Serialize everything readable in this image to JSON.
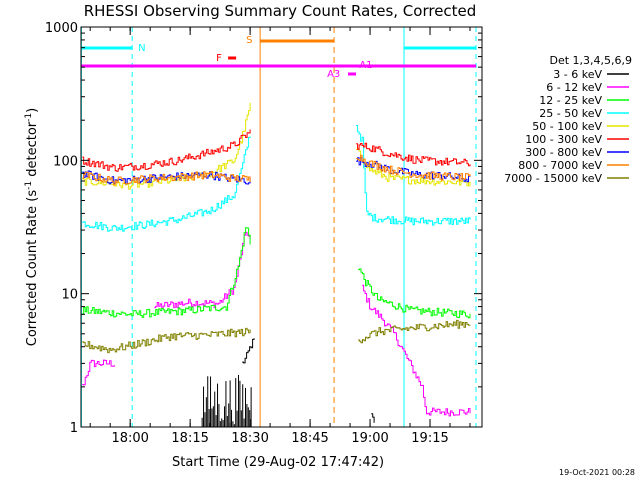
{
  "chart_data": {
    "type": "line",
    "title": "RHESSI Observing Summary Count Rates, Corrected",
    "xlabel": "Start Time (29-Aug-02 17:47:42)",
    "ylabel": "Corrected Count Rate (s⁻¹ detector⁻¹)",
    "ylabel_parts": {
      "main": "Corrected Count Rate (s",
      "sup1": "-1",
      "mid": " detector",
      "sup2": "-1",
      "end": ")"
    },
    "xlim_minutes_after_17_00": [
      47.7,
      148.0
    ],
    "ylim": [
      1,
      1000
    ],
    "yscale": "log",
    "x_ticks": [
      {
        "label": "18:00",
        "t": 60
      },
      {
        "label": "18:15",
        "t": 75
      },
      {
        "label": "18:30",
        "t": 90
      },
      {
        "label": "18:45",
        "t": 105
      },
      {
        "label": "19:00",
        "t": 120
      },
      {
        "label": "19:15",
        "t": 135
      }
    ],
    "y_ticks": [
      {
        "label": "1",
        "v": 1
      },
      {
        "label": "10",
        "v": 10
      },
      {
        "label": "100",
        "v": 100
      },
      {
        "label": "1000",
        "v": 1000
      }
    ],
    "legend_title": "Det 1,3,4,5,6,9",
    "legend_placement": "right",
    "series": [
      {
        "name": "3 - 6 keV",
        "color": "#000000",
        "segments": [
          [
            [
              88,
              3
            ],
            [
              89,
              3.3
            ],
            [
              90,
              4
            ],
            [
              91,
              4.5
            ]
          ],
          [
            [
              120.3,
              1.2
            ],
            [
              121,
              1.1
            ]
          ]
        ]
      },
      {
        "name": "6 - 12 keV",
        "color": "#ff00ff",
        "segments": [
          [
            [
              48,
              2
            ],
            [
              50,
              3
            ],
            [
              56,
              3
            ]
          ],
          [
            [
              66,
              8
            ],
            [
              75,
              8.6
            ],
            [
              82,
              8.4
            ],
            [
              86,
              11
            ],
            [
              88,
              22
            ],
            [
              89,
              30
            ],
            [
              90,
              25
            ]
          ],
          [
            [
              118,
              11
            ],
            [
              120,
              8
            ],
            [
              123,
              6.5
            ],
            [
              126,
              5
            ],
            [
              133,
              2
            ],
            [
              134,
              1.3
            ],
            [
              145,
              1.3
            ]
          ]
        ]
      },
      {
        "name": "12 - 25 keV",
        "color": "#00ff00",
        "segments": [
          [
            [
              48,
              7.5
            ],
            [
              60,
              7
            ],
            [
              75,
              7.5
            ],
            [
              84,
              8
            ],
            [
              87,
              16
            ],
            [
              89,
              33
            ],
            [
              90,
              24
            ]
          ],
          [
            [
              117,
              16
            ],
            [
              119,
              12
            ],
            [
              122,
              9
            ],
            [
              130,
              7.5
            ],
            [
              145,
              7
            ]
          ]
        ]
      },
      {
        "name": "25 - 50 keV",
        "color": "#00ffff",
        "segments": [
          [
            [
              48,
              34
            ],
            [
              56,
              31
            ],
            [
              64,
              33
            ],
            [
              72,
              36
            ],
            [
              80,
              42
            ],
            [
              86,
              55
            ],
            [
              88,
              90
            ],
            [
              90,
              160
            ]
          ],
          [
            [
              116.5,
              180
            ],
            [
              118,
              140
            ],
            [
              119,
              40
            ],
            [
              121,
              37
            ],
            [
              130,
              35
            ],
            [
              145,
              35
            ]
          ]
        ]
      },
      {
        "name": "50 - 100 keV",
        "color": "#e6e600",
        "segments": [
          [
            [
              48,
              70
            ],
            [
              60,
              65
            ],
            [
              72,
              72
            ],
            [
              80,
              80
            ],
            [
              86,
              100
            ],
            [
              88,
              150
            ],
            [
              90,
              260
            ]
          ],
          [
            [
              116.5,
              120
            ],
            [
              120,
              85
            ],
            [
              125,
              73
            ],
            [
              135,
              70
            ],
            [
              145,
              68
            ]
          ]
        ]
      },
      {
        "name": "100 - 300 keV",
        "color": "#ff0000",
        "segments": [
          [
            [
              48,
              100
            ],
            [
              56,
              88
            ],
            [
              64,
              92
            ],
            [
              72,
              100
            ],
            [
              80,
              115
            ],
            [
              86,
              130
            ],
            [
              90,
              165
            ]
          ],
          [
            [
              116.5,
              130
            ],
            [
              120,
              125
            ],
            [
              125,
              112
            ],
            [
              132,
              100
            ],
            [
              138,
              98
            ],
            [
              145,
              95
            ]
          ]
        ]
      },
      {
        "name": "300 - 800 keV",
        "color": "#0000ff",
        "segments": [
          [
            [
              48,
              80
            ],
            [
              56,
              70
            ],
            [
              64,
              73
            ],
            [
              72,
              76
            ],
            [
              80,
              78
            ],
            [
              85,
              73
            ],
            [
              90,
              70
            ]
          ],
          [
            [
              116.5,
              100
            ],
            [
              120,
              95
            ],
            [
              125,
              85
            ],
            [
              132,
              78
            ],
            [
              138,
              77
            ],
            [
              145,
              72
            ]
          ]
        ]
      },
      {
        "name": "800 - 7000 keV",
        "color": "#ff8000",
        "segments": [
          [
            [
              48,
              78
            ],
            [
              56,
              70
            ],
            [
              64,
              73
            ],
            [
              72,
              75
            ],
            [
              80,
              78
            ],
            [
              85,
              74
            ],
            [
              90,
              72
            ]
          ],
          [
            [
              116.5,
              110
            ],
            [
              120,
              95
            ],
            [
              125,
              85
            ],
            [
              132,
              78
            ],
            [
              138,
              76
            ],
            [
              145,
              74
            ]
          ]
        ]
      },
      {
        "name": "7000 - 15000 keV",
        "color": "#808000",
        "segments": [
          [
            [
              48,
              4.2
            ],
            [
              55,
              3.8
            ],
            [
              62,
              4.2
            ],
            [
              70,
              4.8
            ],
            [
              80,
              4.9
            ],
            [
              90,
              5.2
            ]
          ],
          [
            [
              117,
              4.5
            ],
            [
              122,
              5.2
            ],
            [
              130,
              5.5
            ],
            [
              138,
              5.8
            ],
            [
              145,
              6
            ]
          ]
        ]
      }
    ],
    "black_bursts": [
      {
        "t": [
          78,
          90.5
        ],
        "low": 1,
        "high": 2.5
      }
    ],
    "annotations": {
      "night_label": "N",
      "saa_label": "S",
      "flare_label": "F",
      "atten1_label": "A1",
      "atten3_label": "A3",
      "night_color": "#00ffff",
      "saa_color": "#ff8000",
      "flare_color": "#ff0000",
      "atten_color": "#ff00ff",
      "night_bars": [
        [
          47.7,
          60.5
        ],
        [
          128.5,
          146.5
        ]
      ],
      "saa_bar": [
        92.5,
        111
      ],
      "flare_bar": [
        84.5,
        86.5
      ],
      "atten1_bar": [
        47.7,
        146.5
      ],
      "atten3_bar": [
        114.5,
        116.5
      ],
      "night_vlines_solid": [
        47.8,
        128.5
      ],
      "night_vlines_dash": [
        60.5,
        146.5
      ],
      "saa_vlines_solid": [
        92.5
      ],
      "saa_vlines_dash": [
        111
      ]
    }
  },
  "timestamp": "19-Oct-2021 00:28"
}
